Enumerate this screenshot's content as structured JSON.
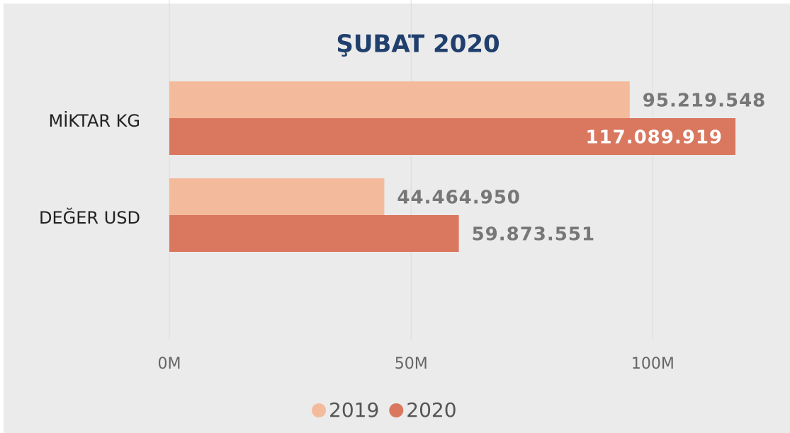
{
  "chart_data": {
    "type": "barh",
    "title": "ŞUBAT 2020",
    "categories": [
      "MİKTAR KG",
      "DEĞER USD"
    ],
    "series": [
      {
        "name": "2019",
        "color": "#f3bb9c",
        "values": [
          95219548,
          44464950
        ],
        "value_labels": [
          "95.219.548",
          "44.464.950"
        ]
      },
      {
        "name": "2020",
        "color": "#d9775f",
        "values": [
          117089919,
          59873551
        ],
        "value_labels": [
          "117.089.919",
          "59.873.551"
        ]
      }
    ],
    "xlim": [
      0,
      125000000
    ],
    "xticks": [
      {
        "value": 0,
        "label": "0M"
      },
      {
        "value": 50000000,
        "label": "50M"
      },
      {
        "value": 100000000,
        "label": "100M"
      }
    ],
    "grid": true,
    "legend": "bottom"
  }
}
